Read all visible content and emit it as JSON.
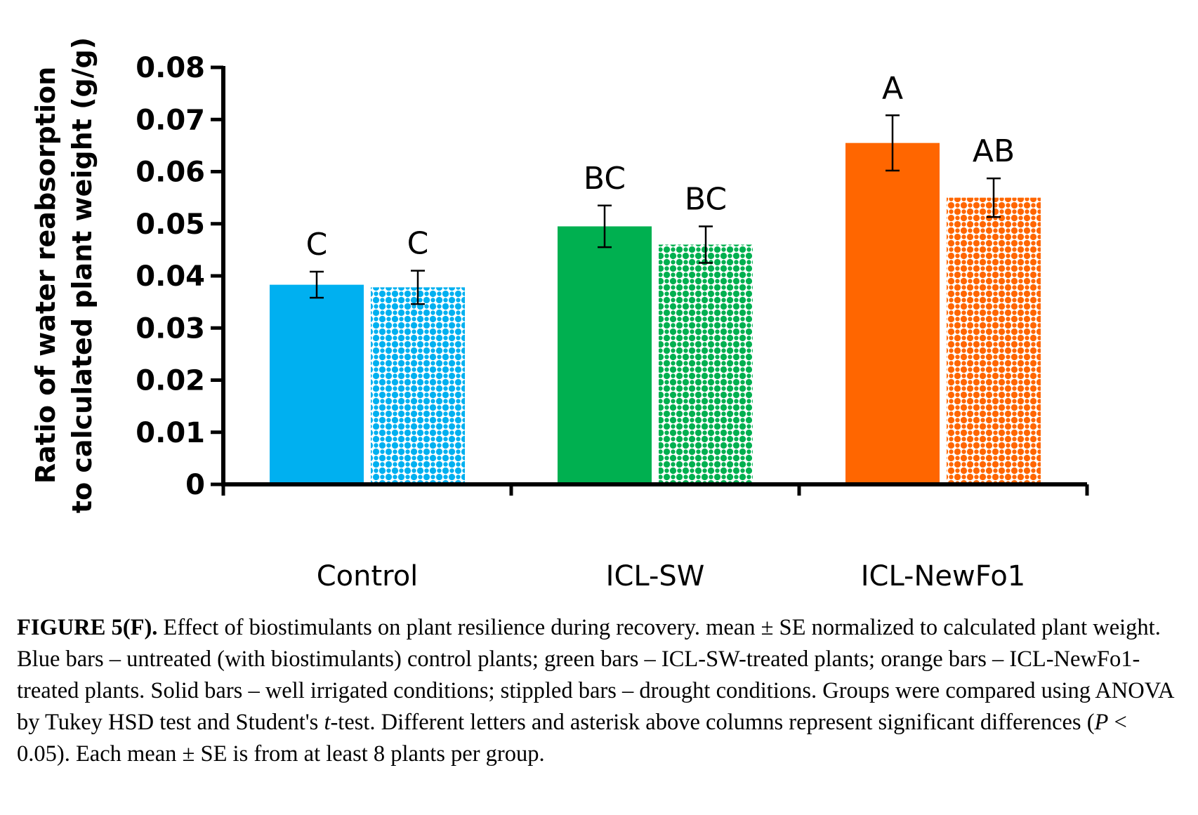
{
  "chart_data": {
    "type": "bar",
    "ylabel": "Ratio of water reabsorption to calculated plant weight (g/g)",
    "ylabel_lines": [
      "Ratio of water reabsorption",
      "to calculated plant weight (g/g)"
    ],
    "ylim": [
      0,
      0.08
    ],
    "yticks": [
      "0",
      "0.01",
      "0.02",
      "0.03",
      "0.04",
      "0.05",
      "0.06",
      "0.07",
      "0.08"
    ],
    "categories": [
      "Control",
      "ICL-SW",
      "ICL-NewFo1"
    ],
    "grid": false,
    "series": [
      {
        "fill": "solid",
        "values": [
          0.0383,
          0.0495,
          0.0655
        ],
        "errors": [
          0.0025,
          0.004,
          0.0053
        ],
        "labels": [
          "C",
          "BC",
          "A"
        ]
      },
      {
        "fill": "stippled",
        "values": [
          0.0378,
          0.046,
          0.055
        ],
        "errors": [
          0.0032,
          0.0035,
          0.0037
        ],
        "labels": [
          "C",
          "BC",
          "AB"
        ]
      }
    ],
    "colors": [
      "#00B0F0",
      "#00B050",
      "#FF6600"
    ]
  },
  "caption": {
    "label": "FIGURE 5(F).",
    "text_part1": " Effect of biostimulants on plant resilience during recovery. mean ± SE normalized to calculated plant weight. Blue bars – untreated (with biostimulants) control plants; green bars – ICL-SW-treated plants; orange bars – ICL-NewFo1-treated plants. Solid bars – well irrigated conditions; stippled bars – drought conditions. Groups were compared using ANOVA by Tukey HSD test and Student's ",
    "t_italic": "t",
    "text_part2": "-test. Different letters and asterisk above columns represent significant differences (",
    "p_italic": "P",
    "text_part3": " < 0.05). Each mean ± SE is from at least 8 plants per group."
  }
}
